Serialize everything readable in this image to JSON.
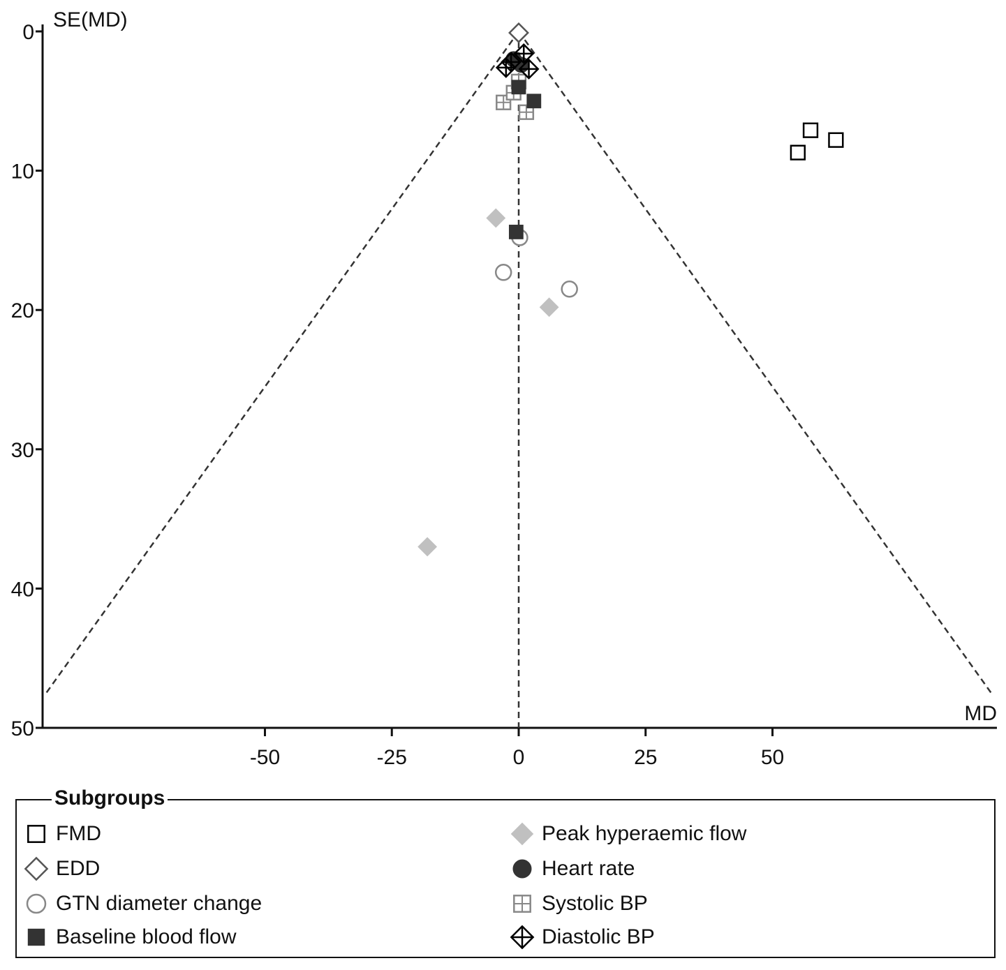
{
  "chart_data": {
    "type": "scatter",
    "title": "",
    "ylabel": "SE(MD)",
    "xlabel": "MD",
    "xlim": [
      -94,
      94
    ],
    "ylim": [
      50,
      0
    ],
    "xticks": [
      -50,
      -25,
      0,
      25,
      50
    ],
    "yticks": [
      0,
      10,
      20,
      30,
      40,
      50
    ],
    "x_tick_labels": [
      "-50",
      "-25",
      "0",
      "25",
      "50"
    ],
    "y_tick_labels": [
      "0",
      "10",
      "20",
      "30",
      "40",
      "50"
    ],
    "reference_line_x": 0,
    "funnel_limits": "95% pseudo confidence limits, dashed (x = ±1.96·SE)",
    "legend_title": "Subgroups",
    "legend_position": "bottom",
    "series": [
      {
        "name": "FMD",
        "marker": "open-square",
        "color": "#000000",
        "points": [
          {
            "x": 57.5,
            "y": 7.1
          },
          {
            "x": 62.5,
            "y": 7.8
          },
          {
            "x": 55,
            "y": 8.7
          }
        ]
      },
      {
        "name": "EDD",
        "marker": "open-diamond",
        "color": "#555555",
        "points": [
          {
            "x": 0,
            "y": 0.1
          }
        ]
      },
      {
        "name": "GTN diameter change",
        "marker": "open-circle",
        "color": "#888888",
        "points": [
          {
            "x": 0.2,
            "y": 14.8
          },
          {
            "x": -3,
            "y": 17.3
          },
          {
            "x": 10,
            "y": 18.5
          }
        ]
      },
      {
        "name": "Baseline blood flow",
        "marker": "filled-square",
        "color": "#333333",
        "points": [
          {
            "x": 3,
            "y": 5
          },
          {
            "x": 0,
            "y": 4
          },
          {
            "x": -0.5,
            "y": 14.4
          }
        ]
      },
      {
        "name": "Peak hyperaemic flow",
        "marker": "filled-diamond",
        "color": "#c0c0c0",
        "points": [
          {
            "x": -4.5,
            "y": 13.4
          },
          {
            "x": 6,
            "y": 19.8
          },
          {
            "x": -18,
            "y": 37
          }
        ]
      },
      {
        "name": "Heart rate",
        "marker": "filled-circle",
        "color": "#333333",
        "points": [
          {
            "x": -1,
            "y": 2
          },
          {
            "x": 0.5,
            "y": 2.4
          }
        ]
      },
      {
        "name": "Systolic BP",
        "marker": "grid-square",
        "color": "#888888",
        "points": [
          {
            "x": -3,
            "y": 5.1
          },
          {
            "x": -1,
            "y": 4.4
          },
          {
            "x": 1.5,
            "y": 5.8
          },
          {
            "x": 0,
            "y": 3.6
          }
        ]
      },
      {
        "name": "Diastolic BP",
        "marker": "crossed-diamond",
        "color": "#000000",
        "points": [
          {
            "x": 1,
            "y": 1.6
          },
          {
            "x": -1.5,
            "y": 2.2
          },
          {
            "x": -2.5,
            "y": 2.6
          },
          {
            "x": 2,
            "y": 2.7
          }
        ]
      }
    ]
  },
  "legend": {
    "title": "Subgroups",
    "items": [
      {
        "label": "FMD",
        "marker": "open-square",
        "color": "#000000"
      },
      {
        "label": "EDD",
        "marker": "open-diamond",
        "color": "#555555"
      },
      {
        "label": "GTN diameter change",
        "marker": "open-circle",
        "color": "#888888"
      },
      {
        "label": "Baseline blood flow",
        "marker": "filled-square",
        "color": "#333333"
      },
      {
        "label": "Peak hyperaemic flow",
        "marker": "filled-diamond",
        "color": "#c0c0c0"
      },
      {
        "label": "Heart rate",
        "marker": "filled-circle",
        "color": "#333333"
      },
      {
        "label": "Systolic BP",
        "marker": "grid-square",
        "color": "#888888"
      },
      {
        "label": "Diastolic BP",
        "marker": "crossed-diamond",
        "color": "#000000"
      }
    ]
  }
}
